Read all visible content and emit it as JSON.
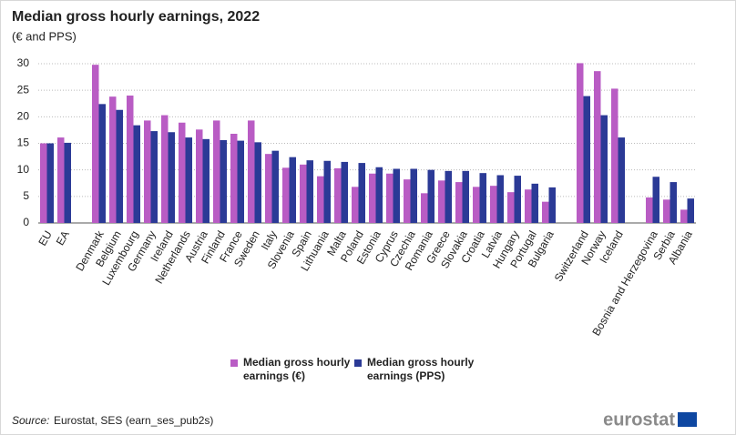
{
  "chart_data": {
    "type": "bar",
    "title": "Median gross hourly earnings, 2022",
    "subtitle": "(€ and PPS)",
    "categories": [
      "EU",
      "EA",
      null,
      "Denmark",
      "Belgium",
      "Luxembourg",
      "Germany",
      "Ireland",
      "Netherlands",
      "Austria",
      "Finland",
      "France",
      "Sweden",
      "Italy",
      "Slovenia",
      "Spain",
      "Lithuania",
      "Malta",
      "Poland",
      "Estonia",
      "Cyprus",
      "Czechia",
      "Romania",
      "Greece",
      "Slovakia",
      "Croatia",
      "Latvia",
      "Hungary",
      "Portugal",
      "Bulgaria",
      null,
      "Switzerland",
      "Norway",
      "Iceland",
      null,
      "Bosnia and Herzegovina",
      "Serbia",
      "Albania"
    ],
    "series": [
      {
        "name": "Median gross hourly earnings (€)",
        "color": "#b95cc4",
        "values": [
          15.0,
          16.1,
          null,
          29.8,
          23.8,
          24.0,
          19.3,
          20.3,
          18.9,
          17.6,
          19.3,
          16.8,
          19.3,
          13.0,
          10.4,
          11.0,
          8.8,
          10.3,
          6.8,
          9.3,
          9.3,
          8.2,
          5.6,
          8.0,
          7.7,
          6.8,
          7.0,
          5.8,
          6.3,
          4.0,
          null,
          30.1,
          28.6,
          25.3,
          null,
          4.8,
          4.4,
          2.5
        ]
      },
      {
        "name": "Median gross hourly earnings (PPS)",
        "color": "#2b3a96",
        "values": [
          15.0,
          15.1,
          null,
          22.4,
          21.3,
          18.4,
          17.3,
          17.1,
          16.1,
          15.8,
          15.6,
          15.5,
          15.2,
          13.6,
          12.4,
          11.8,
          11.7,
          11.5,
          11.3,
          10.5,
          10.2,
          10.2,
          10.0,
          9.8,
          9.8,
          9.4,
          9.0,
          8.9,
          7.4,
          6.7,
          null,
          23.9,
          20.3,
          16.1,
          null,
          8.7,
          7.7,
          4.6
        ]
      }
    ],
    "ylim": [
      0,
      30
    ],
    "yticks": [
      0,
      5,
      10,
      15,
      20,
      25,
      30
    ],
    "grid": true,
    "source_label": "Source:",
    "source": "Eurostat, SES (earn_ses_pub2s)",
    "logo": "eurostat"
  }
}
